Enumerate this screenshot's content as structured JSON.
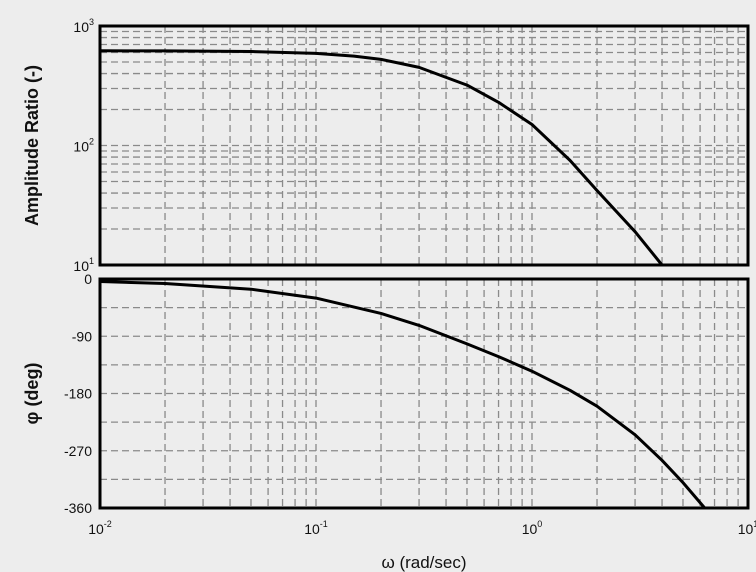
{
  "chart_data": [
    {
      "type": "line",
      "panel": "amplitude",
      "ylabel": "Amplitude Ratio (-)",
      "yscale": "log",
      "xscale": "log",
      "ylim": [
        10,
        1000
      ],
      "xlim": [
        0.01,
        10
      ],
      "grid": true,
      "yticks": [
        {
          "value": 1000,
          "base": "10",
          "exp": "3"
        },
        {
          "value": 100,
          "base": "10",
          "exp": "2"
        },
        {
          "value": 10,
          "base": "10",
          "exp": "1"
        }
      ],
      "series": [
        {
          "x": [
            0.01,
            0.02,
            0.05,
            0.1,
            0.15,
            0.2,
            0.3,
            0.5,
            0.7,
            1.0,
            1.5,
            2.0,
            3.0,
            4.0
          ],
          "y": [
            620,
            619,
            612,
            590,
            560,
            525,
            450,
            320,
            230,
            150,
            75,
            42,
            19,
            10
          ]
        }
      ]
    },
    {
      "type": "line",
      "panel": "phase",
      "ylabel": "φ (deg)",
      "xscale": "log",
      "ylim": [
        -360,
        0
      ],
      "xlim": [
        0.01,
        10
      ],
      "grid": true,
      "yticks": [
        {
          "value": 0,
          "label": "0"
        },
        {
          "value": -90,
          "label": "-90"
        },
        {
          "value": -180,
          "label": "-180"
        },
        {
          "value": -270,
          "label": "-270"
        },
        {
          "value": -360,
          "label": "-360"
        }
      ],
      "xticks": [
        {
          "value": 0.01,
          "base": "10",
          "exp": "-2"
        },
        {
          "value": 0.1,
          "base": "10",
          "exp": "-1"
        },
        {
          "value": 1,
          "base": "10",
          "exp": "0"
        },
        {
          "value": 10,
          "base": "10",
          "exp": "1"
        }
      ],
      "xlabel": "ω (rad/sec)",
      "series": [
        {
          "x": [
            0.01,
            0.02,
            0.05,
            0.1,
            0.2,
            0.3,
            0.5,
            0.7,
            1.0,
            1.5,
            2.0,
            3.0,
            4.0,
            5.0,
            6.3
          ],
          "y": [
            -4,
            -7,
            -16,
            -30,
            -54,
            -73,
            -102,
            -122,
            -145,
            -175,
            -200,
            -245,
            -285,
            -320,
            -360
          ]
        }
      ]
    }
  ]
}
